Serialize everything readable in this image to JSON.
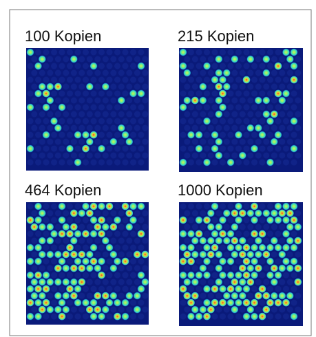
{
  "panels": [
    {
      "label": "100 Kopien"
    },
    {
      "label": "215 Kopien"
    },
    {
      "label": "464 Kopien"
    },
    {
      "label": "1000 Kopien"
    }
  ]
}
